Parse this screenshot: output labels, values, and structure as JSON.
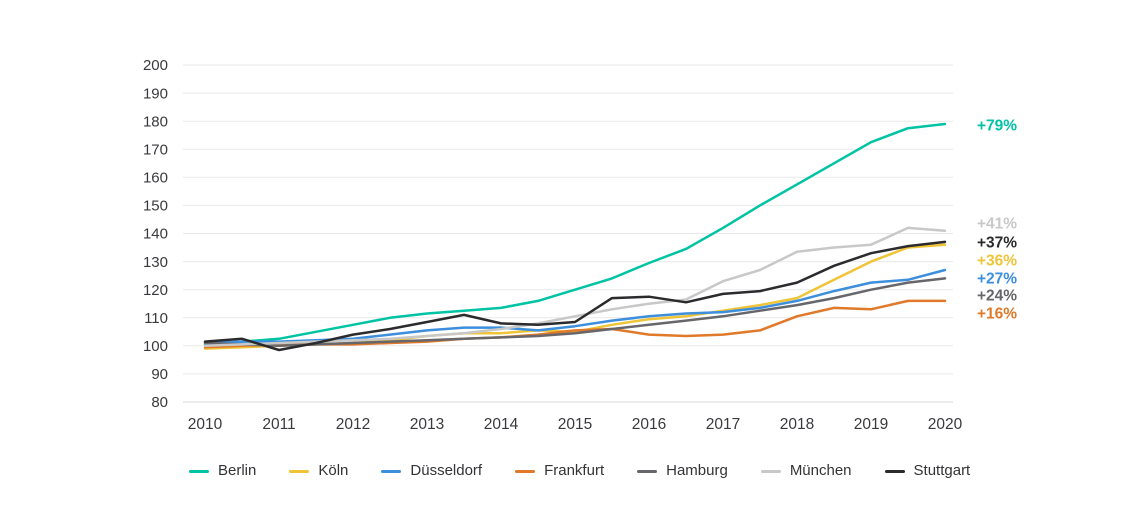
{
  "chart_data": {
    "type": "line",
    "title": "",
    "xlabel": "",
    "ylabel": "",
    "ylim": [
      80,
      200
    ],
    "y_ticks": [
      200,
      190,
      180,
      170,
      160,
      150,
      140,
      130,
      120,
      110,
      100,
      90,
      80
    ],
    "x_tick_labels": [
      "2010",
      "2011",
      "2012",
      "2013",
      "2014",
      "2015",
      "2016",
      "2017",
      "2018",
      "2019",
      "2020"
    ],
    "grid": "horizontal",
    "legend_position": "bottom",
    "x": [
      2010,
      2010.5,
      2011,
      2011.5,
      2012,
      2012.5,
      2013,
      2013.5,
      2014,
      2014.5,
      2015,
      2015.5,
      2016,
      2016.5,
      2017,
      2017.5,
      2018,
      2018.5,
      2019,
      2019.5,
      2020
    ],
    "series": [
      {
        "name": "Berlin",
        "color": "#00C3A4",
        "end_label": "+79%",
        "values": [
          100.5,
          101.5,
          102.5,
          105,
          107.5,
          110,
          111.5,
          112.5,
          113.5,
          116,
          120,
          124,
          129.5,
          134.5,
          142,
          150,
          157.5,
          165,
          172.5,
          177.5,
          179
        ]
      },
      {
        "name": "Köln",
        "color": "#F0C437",
        "end_label": "+36%",
        "values": [
          99,
          99.5,
          100,
          100.5,
          101,
          102,
          103.5,
          104.5,
          104.5,
          105.5,
          105,
          107.5,
          109.5,
          110.5,
          112.5,
          114.5,
          117,
          123.5,
          130,
          135,
          136
        ]
      },
      {
        "name": "Düsseldorf",
        "color": "#3D8EDC",
        "end_label": "+27%",
        "values": [
          101,
          101.5,
          101.5,
          102,
          102.5,
          104,
          105.5,
          106.5,
          106.5,
          105.5,
          107,
          109,
          110.5,
          111.5,
          112,
          113.5,
          116,
          119.5,
          122.5,
          123.5,
          127
        ]
      },
      {
        "name": "Frankfurt",
        "color": "#E0792A",
        "end_label": "+16%",
        "values": [
          99.5,
          100,
          100.5,
          100.5,
          100.5,
          101,
          101.5,
          102.5,
          103,
          104,
          105.5,
          106,
          104,
          103.5,
          104,
          105.5,
          110.5,
          113.5,
          113,
          116,
          116
        ]
      },
      {
        "name": "Hamburg",
        "color": "#67676B",
        "end_label": "+24%",
        "values": [
          101,
          100.5,
          100,
          100.5,
          101,
          101.5,
          102,
          102.5,
          103,
          103.5,
          104.5,
          106,
          107.5,
          109,
          110.5,
          112.5,
          114.5,
          117,
          120,
          122.5,
          124
        ]
      },
      {
        "name": "München",
        "color": "#C8C8C8",
        "end_label": "+41%",
        "values": [
          100,
          100.5,
          101,
          101.5,
          102,
          102.5,
          103.5,
          104.5,
          106,
          108,
          110.5,
          113,
          115,
          116.5,
          123,
          127,
          133.5,
          135,
          136,
          142,
          141
        ]
      },
      {
        "name": "Stuttgart",
        "color": "#2B2B2E",
        "end_label": "+37%",
        "values": [
          101.5,
          102.5,
          98.5,
          101,
          104,
          106,
          108.5,
          111,
          108,
          107.5,
          108.5,
          117,
          117.5,
          115.5,
          118.5,
          119.5,
          122.5,
          128.5,
          133,
          135.5,
          137
        ]
      }
    ]
  }
}
